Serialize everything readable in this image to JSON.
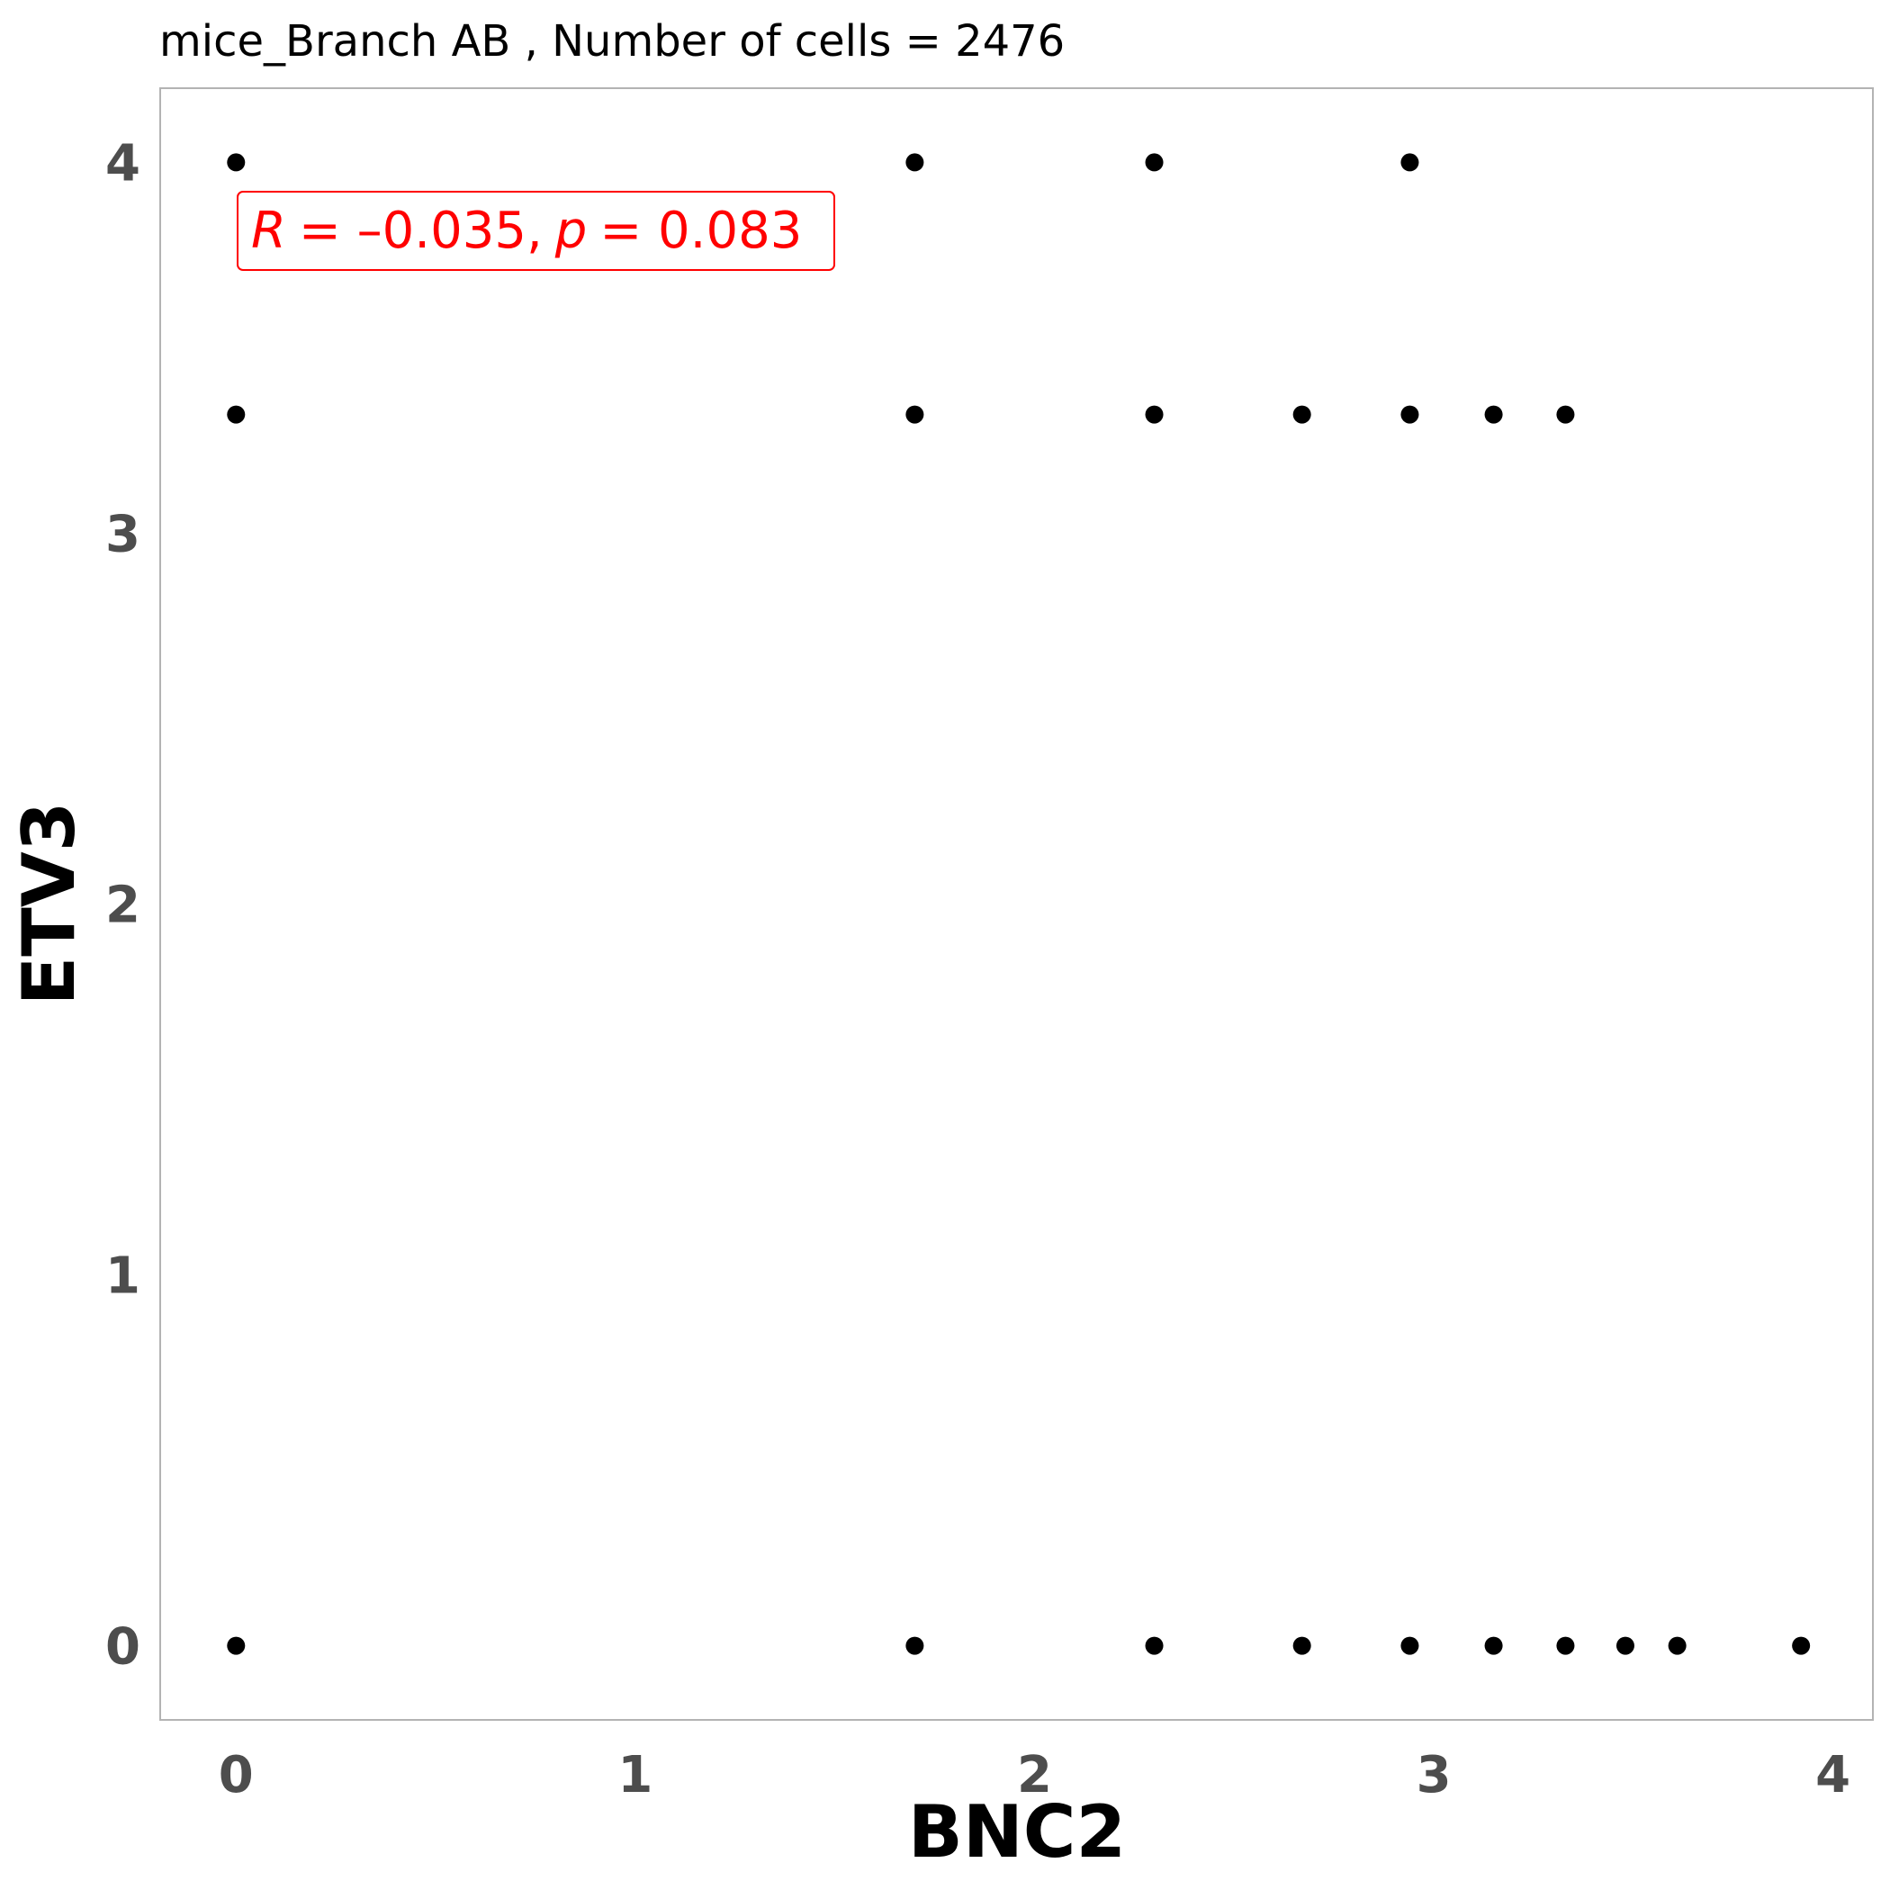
{
  "chart_data": {
    "type": "scatter",
    "title": "mice_Branch AB , Number of cells =  2476",
    "xlabel": "BNC2",
    "ylabel": "ETV3",
    "xlim": [
      -0.19,
      4.1
    ],
    "ylim": [
      -0.2,
      4.2
    ],
    "x_ticks": [
      0,
      1,
      2,
      3,
      4
    ],
    "y_ticks": [
      0,
      1,
      2,
      3,
      4
    ],
    "grid": false,
    "point_color": "#000000",
    "annotation": {
      "r_symbol": "R",
      "r_value": "= –0.035,",
      "p_symbol": "p",
      "p_value": "= 0.083",
      "color": "#ff0000"
    },
    "points": [
      {
        "x": 0,
        "y": 4
      },
      {
        "x": 1.7,
        "y": 4
      },
      {
        "x": 2.3,
        "y": 4
      },
      {
        "x": 2.94,
        "y": 4
      },
      {
        "x": 0,
        "y": 3.32
      },
      {
        "x": 1.7,
        "y": 3.32
      },
      {
        "x": 2.3,
        "y": 3.32
      },
      {
        "x": 2.67,
        "y": 3.32
      },
      {
        "x": 2.94,
        "y": 3.32
      },
      {
        "x": 3.15,
        "y": 3.32
      },
      {
        "x": 3.33,
        "y": 3.32
      },
      {
        "x": 0,
        "y": 0
      },
      {
        "x": 1.7,
        "y": 0
      },
      {
        "x": 2.3,
        "y": 0
      },
      {
        "x": 2.67,
        "y": 0
      },
      {
        "x": 2.94,
        "y": 0
      },
      {
        "x": 3.15,
        "y": 0
      },
      {
        "x": 3.33,
        "y": 0
      },
      {
        "x": 3.48,
        "y": 0
      },
      {
        "x": 3.61,
        "y": 0
      },
      {
        "x": 3.92,
        "y": 0
      }
    ]
  }
}
